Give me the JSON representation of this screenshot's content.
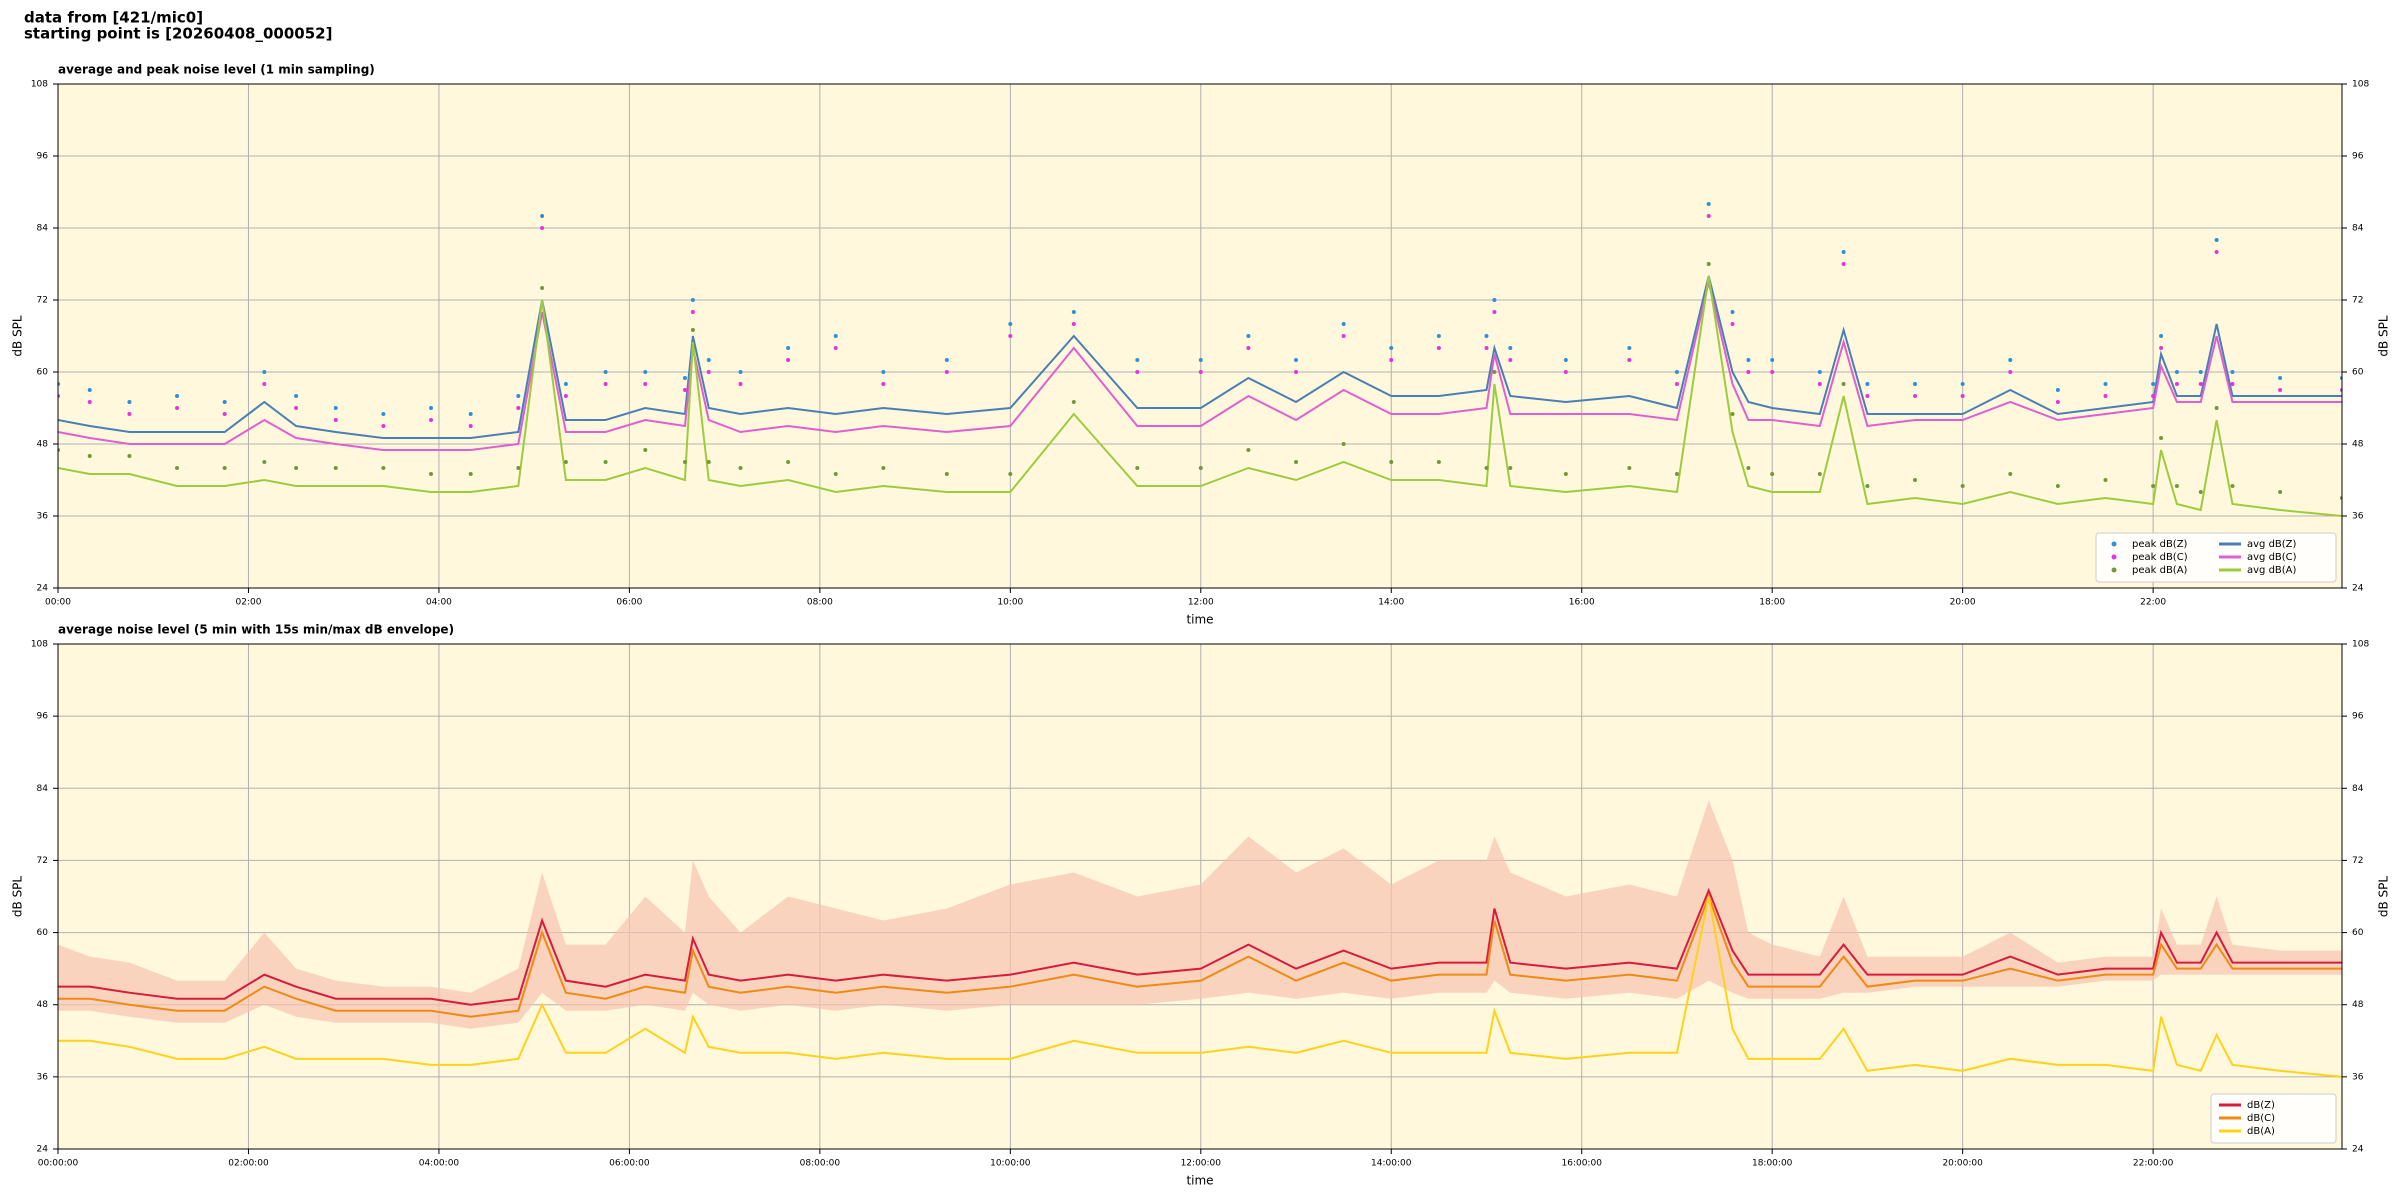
{
  "header": {
    "source": "data from [421/mic0]",
    "start": "starting point is [20260408_000052]"
  },
  "chart_data": [
    {
      "type": "line",
      "title": "average and peak noise level (1 min sampling)",
      "xlabel": "time",
      "ylabel": "dB SPL",
      "xlim": [
        0,
        1439
      ],
      "ylim": [
        24,
        108
      ],
      "yticks": [
        24,
        36,
        48,
        60,
        72,
        84,
        96,
        108
      ],
      "xticks": [
        {
          "value": 0,
          "label": "00:00"
        },
        {
          "value": 120,
          "label": "02:00"
        },
        {
          "value": 240,
          "label": "04:00"
        },
        {
          "value": 360,
          "label": "06:00"
        },
        {
          "value": 480,
          "label": "08:00"
        },
        {
          "value": 600,
          "label": "10:00"
        },
        {
          "value": 720,
          "label": "12:00"
        },
        {
          "value": 840,
          "label": "14:00"
        },
        {
          "value": 960,
          "label": "16:00"
        },
        {
          "value": 1080,
          "label": "18:00"
        },
        {
          "value": 1200,
          "label": "20:00"
        },
        {
          "value": 1320,
          "label": "22:00"
        }
      ],
      "grid": true,
      "legend": "lower right",
      "x": [
        0,
        20,
        45,
        75,
        105,
        130,
        150,
        175,
        205,
        235,
        260,
        290,
        305,
        320,
        345,
        370,
        395,
        400,
        410,
        430,
        460,
        490,
        520,
        560,
        600,
        640,
        680,
        720,
        750,
        780,
        810,
        840,
        870,
        900,
        905,
        915,
        950,
        990,
        1020,
        1040,
        1055,
        1065,
        1080,
        1110,
        1125,
        1140,
        1170,
        1200,
        1230,
        1260,
        1290,
        1320,
        1325,
        1335,
        1350,
        1360,
        1370,
        1400,
        1439
      ],
      "series": [
        {
          "name": "peak dB(Z)",
          "mode": "markers",
          "color": "#2f8fd8",
          "values": [
            58,
            57,
            55,
            56,
            55,
            60,
            56,
            54,
            53,
            54,
            53,
            56,
            86,
            58,
            60,
            60,
            59,
            72,
            62,
            60,
            64,
            66,
            60,
            62,
            68,
            70,
            62,
            62,
            66,
            62,
            68,
            64,
            66,
            66,
            72,
            64,
            62,
            64,
            60,
            88,
            70,
            62,
            62,
            60,
            80,
            58,
            58,
            58,
            62,
            57,
            58,
            58,
            66,
            60,
            60,
            82,
            60,
            59,
            59
          ]
        },
        {
          "name": "peak dB(C)",
          "mode": "markers",
          "color": "#e632e0",
          "values": [
            56,
            55,
            53,
            54,
            53,
            58,
            54,
            52,
            51,
            52,
            51,
            54,
            84,
            56,
            58,
            58,
            57,
            70,
            60,
            58,
            62,
            64,
            58,
            60,
            66,
            68,
            60,
            60,
            64,
            60,
            66,
            62,
            64,
            64,
            70,
            62,
            60,
            62,
            58,
            86,
            68,
            60,
            60,
            58,
            78,
            56,
            56,
            56,
            60,
            55,
            56,
            56,
            64,
            58,
            58,
            80,
            58,
            57,
            57
          ]
        },
        {
          "name": "peak dB(A)",
          "mode": "markers",
          "color": "#6f9a3a",
          "values": [
            47,
            46,
            46,
            44,
            44,
            45,
            44,
            44,
            44,
            43,
            43,
            44,
            74,
            45,
            45,
            47,
            45,
            67,
            45,
            44,
            45,
            43,
            44,
            43,
            43,
            55,
            44,
            44,
            47,
            45,
            48,
            45,
            45,
            44,
            60,
            44,
            43,
            44,
            43,
            78,
            53,
            44,
            43,
            43,
            58,
            41,
            42,
            41,
            43,
            41,
            42,
            41,
            49,
            41,
            40,
            54,
            41,
            40,
            39
          ]
        },
        {
          "name": "avg dB(Z)",
          "mode": "lines",
          "color": "#4a7fb5",
          "values": [
            52,
            51,
            50,
            50,
            50,
            55,
            51,
            50,
            49,
            49,
            49,
            50,
            72,
            52,
            52,
            54,
            53,
            66,
            54,
            53,
            54,
            53,
            54,
            53,
            54,
            66,
            54,
            54,
            59,
            55,
            60,
            56,
            56,
            57,
            64,
            56,
            55,
            56,
            54,
            76,
            60,
            55,
            54,
            53,
            67,
            53,
            53,
            53,
            57,
            53,
            54,
            55,
            63,
            56,
            56,
            68,
            56,
            56,
            56
          ]
        },
        {
          "name": "avg dB(C)",
          "mode": "lines",
          "color": "#e05fd0",
          "values": [
            50,
            49,
            48,
            48,
            48,
            52,
            49,
            48,
            47,
            47,
            47,
            48,
            70,
            50,
            50,
            52,
            51,
            64,
            52,
            50,
            51,
            50,
            51,
            50,
            51,
            64,
            51,
            51,
            56,
            52,
            57,
            53,
            53,
            54,
            63,
            53,
            53,
            53,
            52,
            75,
            58,
            52,
            52,
            51,
            65,
            51,
            52,
            52,
            55,
            52,
            53,
            54,
            61,
            55,
            55,
            66,
            55,
            55,
            55
          ]
        },
        {
          "name": "avg dB(A)",
          "mode": "lines",
          "color": "#9ccc3c",
          "values": [
            44,
            43,
            43,
            41,
            41,
            42,
            41,
            41,
            41,
            40,
            40,
            41,
            72,
            42,
            42,
            44,
            42,
            65,
            42,
            41,
            42,
            40,
            41,
            40,
            40,
            53,
            41,
            41,
            44,
            42,
            45,
            42,
            42,
            41,
            58,
            41,
            40,
            41,
            40,
            76,
            50,
            41,
            40,
            40,
            56,
            38,
            39,
            38,
            40,
            38,
            39,
            38,
            47,
            38,
            37,
            52,
            38,
            37,
            36
          ]
        }
      ]
    },
    {
      "type": "line",
      "title": "average noise level (5 min with 15s min/max dB envelope)",
      "xlabel": "time",
      "ylabel": "dB SPL",
      "xlim": [
        0,
        1439
      ],
      "ylim": [
        24,
        108
      ],
      "yticks": [
        24,
        36,
        48,
        60,
        72,
        84,
        96,
        108
      ],
      "xticks": [
        {
          "value": 0,
          "label": "00:00:00"
        },
        {
          "value": 120,
          "label": "02:00:00"
        },
        {
          "value": 240,
          "label": "04:00:00"
        },
        {
          "value": 360,
          "label": "06:00:00"
        },
        {
          "value": 480,
          "label": "08:00:00"
        },
        {
          "value": 600,
          "label": "10:00:00"
        },
        {
          "value": 720,
          "label": "12:00:00"
        },
        {
          "value": 840,
          "label": "14:00:00"
        },
        {
          "value": 960,
          "label": "16:00:00"
        },
        {
          "value": 1080,
          "label": "18:00:00"
        },
        {
          "value": 1200,
          "label": "20:00:00"
        },
        {
          "value": 1320,
          "label": "22:00:00"
        }
      ],
      "grid": true,
      "legend": "lower right",
      "x": [
        0,
        20,
        45,
        75,
        105,
        130,
        150,
        175,
        205,
        235,
        260,
        290,
        305,
        320,
        345,
        370,
        395,
        400,
        410,
        430,
        460,
        490,
        520,
        560,
        600,
        640,
        680,
        720,
        750,
        780,
        810,
        840,
        870,
        900,
        905,
        915,
        950,
        990,
        1020,
        1040,
        1055,
        1065,
        1080,
        1110,
        1125,
        1140,
        1170,
        1200,
        1230,
        1260,
        1290,
        1320,
        1325,
        1335,
        1350,
        1360,
        1370,
        1400,
        1439
      ],
      "envelope": {
        "color": "#f6c3b0",
        "low": [
          47,
          47,
          46,
          45,
          45,
          48,
          46,
          45,
          45,
          45,
          44,
          45,
          50,
          47,
          47,
          48,
          47,
          50,
          48,
          47,
          48,
          47,
          48,
          47,
          48,
          48,
          48,
          49,
          50,
          49,
          50,
          49,
          50,
          50,
          52,
          50,
          49,
          50,
          49,
          52,
          50,
          49,
          49,
          49,
          50,
          50,
          51,
          51,
          51,
          51,
          52,
          52,
          53,
          53,
          53,
          53,
          53,
          53,
          53
        ],
        "high": [
          58,
          56,
          55,
          52,
          52,
          60,
          54,
          52,
          51,
          51,
          50,
          54,
          70,
          58,
          58,
          66,
          60,
          72,
          66,
          60,
          66,
          64,
          62,
          64,
          68,
          70,
          66,
          68,
          76,
          70,
          74,
          68,
          72,
          72,
          76,
          70,
          66,
          68,
          66,
          82,
          72,
          60,
          58,
          56,
          66,
          56,
          56,
          56,
          60,
          55,
          56,
          56,
          64,
          58,
          58,
          66,
          58,
          57,
          57
        ]
      },
      "series": [
        {
          "name": "dB(Z)",
          "mode": "lines",
          "color": "#d81b3c",
          "values": [
            51,
            51,
            50,
            49,
            49,
            53,
            51,
            49,
            49,
            49,
            48,
            49,
            62,
            52,
            51,
            53,
            52,
            59,
            53,
            52,
            53,
            52,
            53,
            52,
            53,
            55,
            53,
            54,
            58,
            54,
            57,
            54,
            55,
            55,
            64,
            55,
            54,
            55,
            54,
            67,
            57,
            53,
            53,
            53,
            58,
            53,
            53,
            53,
            56,
            53,
            54,
            54,
            60,
            55,
            55,
            60,
            55,
            55,
            55
          ]
        },
        {
          "name": "dB(C)",
          "mode": "lines",
          "color": "#f08a12",
          "values": [
            49,
            49,
            48,
            47,
            47,
            51,
            49,
            47,
            47,
            47,
            46,
            47,
            60,
            50,
            49,
            51,
            50,
            57,
            51,
            50,
            51,
            50,
            51,
            50,
            51,
            53,
            51,
            52,
            56,
            52,
            55,
            52,
            53,
            53,
            62,
            53,
            52,
            53,
            52,
            66,
            55,
            51,
            51,
            51,
            56,
            51,
            52,
            52,
            54,
            52,
            53,
            53,
            58,
            54,
            54,
            58,
            54,
            54,
            54
          ]
        },
        {
          "name": "dB(A)",
          "mode": "lines",
          "color": "#ffd21a",
          "values": [
            42,
            42,
            41,
            39,
            39,
            41,
            39,
            39,
            39,
            38,
            38,
            39,
            48,
            40,
            40,
            44,
            40,
            46,
            41,
            40,
            40,
            39,
            40,
            39,
            39,
            42,
            40,
            40,
            41,
            40,
            42,
            40,
            40,
            40,
            47,
            40,
            39,
            40,
            40,
            66,
            44,
            39,
            39,
            39,
            44,
            37,
            38,
            37,
            39,
            38,
            38,
            37,
            46,
            38,
            37,
            43,
            38,
            37,
            36
          ]
        }
      ]
    }
  ]
}
